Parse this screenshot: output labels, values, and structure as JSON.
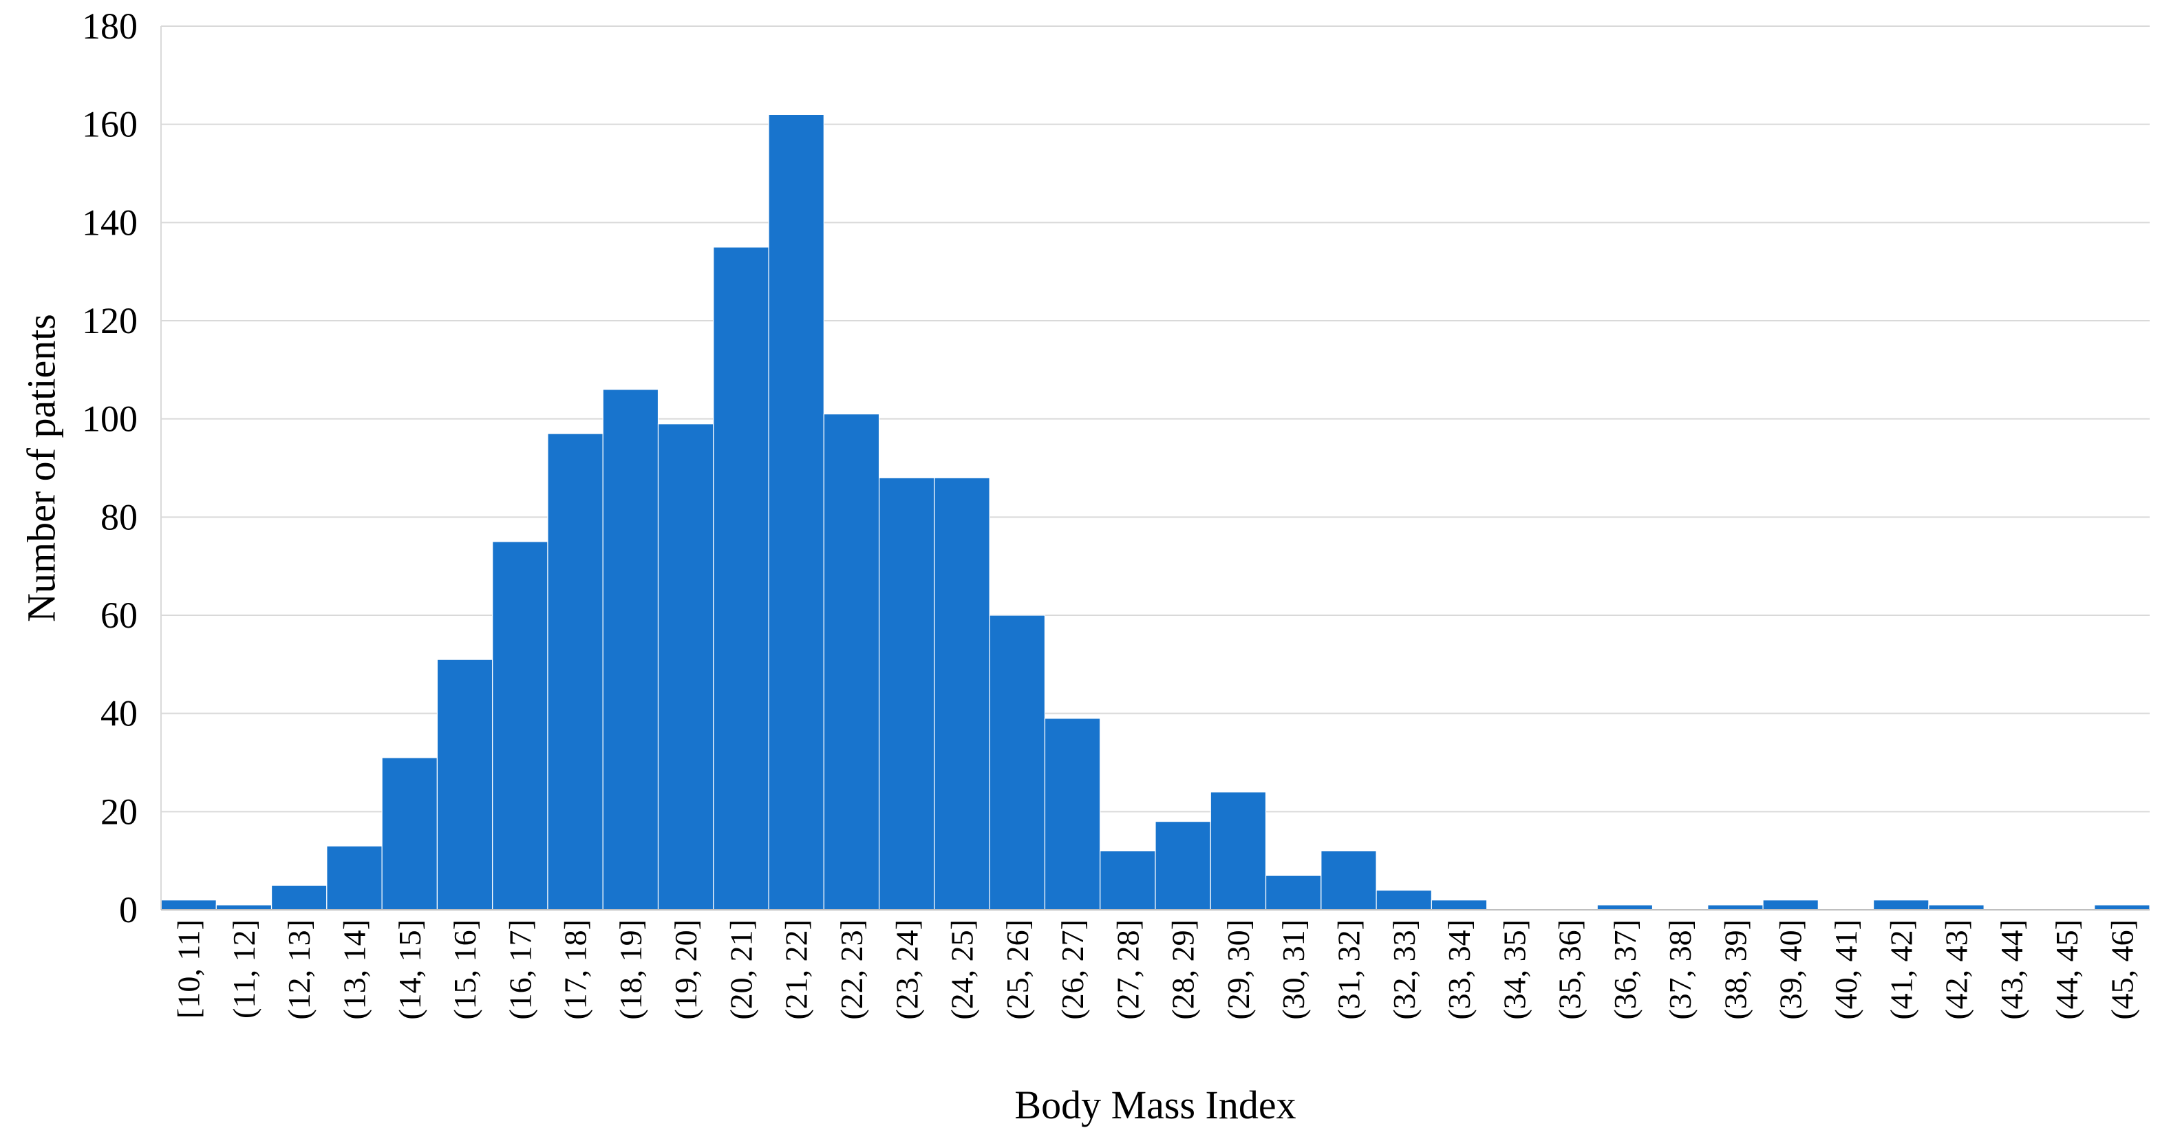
{
  "chart_data": {
    "type": "bar",
    "title": "",
    "xlabel": "Body Mass Index",
    "ylabel": "Number of patients",
    "ylim": [
      0,
      180
    ],
    "yticks": [
      0,
      20,
      40,
      60,
      80,
      100,
      120,
      140,
      160,
      180
    ],
    "grid": true,
    "legend": "none",
    "bar_color": "#1874CD",
    "categories": [
      "[10, 11]",
      "(11, 12]",
      "(12, 13]",
      "(13, 14]",
      "(14, 15]",
      "(15, 16]",
      "(16, 17]",
      "(17, 18]",
      "(18, 19]",
      "(19, 20]",
      "(20, 21]",
      "(21, 22]",
      "(22, 23]",
      "(23, 24]",
      "(24, 25]",
      "(25, 26]",
      "(26, 27]",
      "(27, 28]",
      "(28, 29]",
      "(29, 30]",
      "(30, 31]",
      "(31, 32]",
      "(32, 33]",
      "(33, 34]",
      "(34, 35]",
      "(35, 36]",
      "(36, 37]",
      "(37, 38]",
      "(38, 39]",
      "(39, 40]",
      "(40, 41]",
      "(41, 42]",
      "(42, 43]",
      "(43, 44]",
      "(44, 45]",
      "(45, 46]"
    ],
    "values": [
      2,
      1,
      5,
      13,
      31,
      51,
      75,
      97,
      106,
      99,
      135,
      162,
      101,
      88,
      88,
      60,
      39,
      12,
      18,
      24,
      7,
      12,
      4,
      2,
      0,
      0,
      1,
      0,
      1,
      2,
      0,
      2,
      1,
      0,
      0,
      1
    ]
  }
}
